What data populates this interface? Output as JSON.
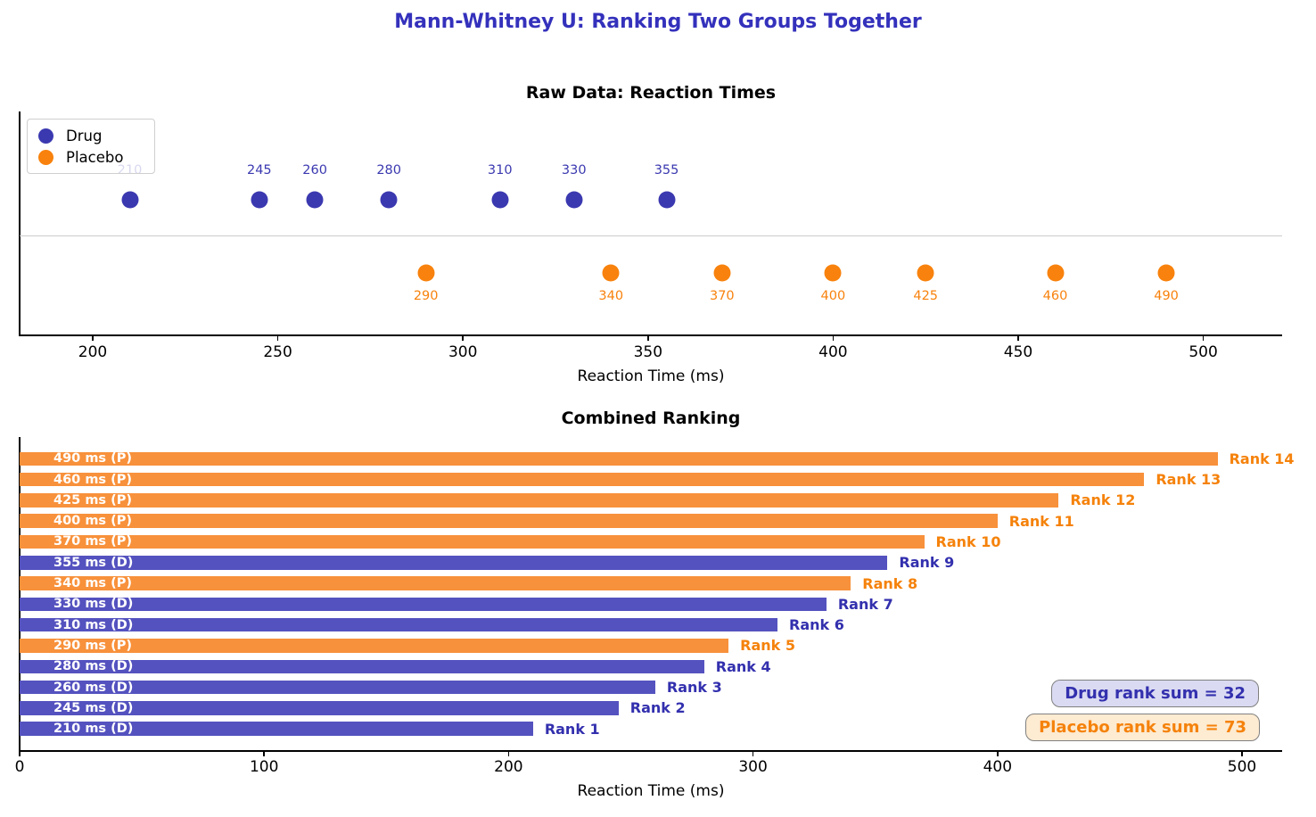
{
  "main_title": "Mann-Whitney U: Ranking Two Groups Together",
  "palette": {
    "title_color": "#3431BC",
    "drug_dot": "#3B39B0",
    "drug_bar": "#5452BF",
    "drug_text": "#3330AE",
    "placebo_dot": "#F8820D",
    "placebo_bar": "#F8913B",
    "placebo_text": "#F5820B",
    "divider": "#cccccc",
    "annot_drug_bg": "#DADAF2",
    "annot_placebo_bg": "#FDEBD2",
    "annot_border": "#808080"
  },
  "chart_data": [
    {
      "type": "scatter",
      "title": "Raw Data: Reaction Times",
      "xlabel": "Reaction Time (ms)",
      "x_ticks": [
        200,
        250,
        300,
        350,
        400,
        450,
        500
      ],
      "xlim": [
        180,
        521
      ],
      "grid": false,
      "legend": {
        "position": "upper left",
        "entries": [
          {
            "name": "Drug",
            "group": "drug"
          },
          {
            "name": "Placebo",
            "group": "placebo"
          }
        ]
      },
      "series": [
        {
          "name": "Drug",
          "group": "drug",
          "row": "upper",
          "x": [
            210,
            245,
            260,
            280,
            310,
            330,
            355
          ]
        },
        {
          "name": "Placebo",
          "group": "placebo",
          "row": "lower",
          "x": [
            290,
            340,
            370,
            400,
            425,
            460,
            490
          ]
        }
      ],
      "point_labels_show_values": true
    },
    {
      "type": "bar",
      "orientation": "horizontal",
      "title": "Combined Ranking",
      "xlabel": "Reaction Time (ms)",
      "x_ticks": [
        0,
        100,
        200,
        300,
        400,
        500
      ],
      "xlim": [
        0,
        516
      ],
      "bars_top_to_bottom": [
        {
          "bar_label": "490 ms (P)",
          "value": 490,
          "group": "placebo",
          "rank_label": "Rank 14"
        },
        {
          "bar_label": "460 ms (P)",
          "value": 460,
          "group": "placebo",
          "rank_label": "Rank 13"
        },
        {
          "bar_label": "425 ms (P)",
          "value": 425,
          "group": "placebo",
          "rank_label": "Rank 12"
        },
        {
          "bar_label": "400 ms (P)",
          "value": 400,
          "group": "placebo",
          "rank_label": "Rank 11"
        },
        {
          "bar_label": "370 ms (P)",
          "value": 370,
          "group": "placebo",
          "rank_label": "Rank 10"
        },
        {
          "bar_label": "355 ms (D)",
          "value": 355,
          "group": "drug",
          "rank_label": "Rank 9"
        },
        {
          "bar_label": "340 ms (P)",
          "value": 340,
          "group": "placebo",
          "rank_label": "Rank 8"
        },
        {
          "bar_label": "330 ms (D)",
          "value": 330,
          "group": "drug",
          "rank_label": "Rank 7"
        },
        {
          "bar_label": "310 ms (D)",
          "value": 310,
          "group": "drug",
          "rank_label": "Rank 6"
        },
        {
          "bar_label": "290 ms (P)",
          "value": 290,
          "group": "placebo",
          "rank_label": "Rank 5"
        },
        {
          "bar_label": "280 ms (D)",
          "value": 280,
          "group": "drug",
          "rank_label": "Rank 4"
        },
        {
          "bar_label": "260 ms (D)",
          "value": 260,
          "group": "drug",
          "rank_label": "Rank 3"
        },
        {
          "bar_label": "245 ms (D)",
          "value": 245,
          "group": "drug",
          "rank_label": "Rank 2"
        },
        {
          "bar_label": "210 ms (D)",
          "value": 210,
          "group": "drug",
          "rank_label": "Rank 1"
        }
      ],
      "annotations": [
        {
          "text": "Drug rank sum = 32",
          "group": "drug"
        },
        {
          "text": "Placebo rank sum = 73",
          "group": "placebo"
        }
      ]
    }
  ]
}
